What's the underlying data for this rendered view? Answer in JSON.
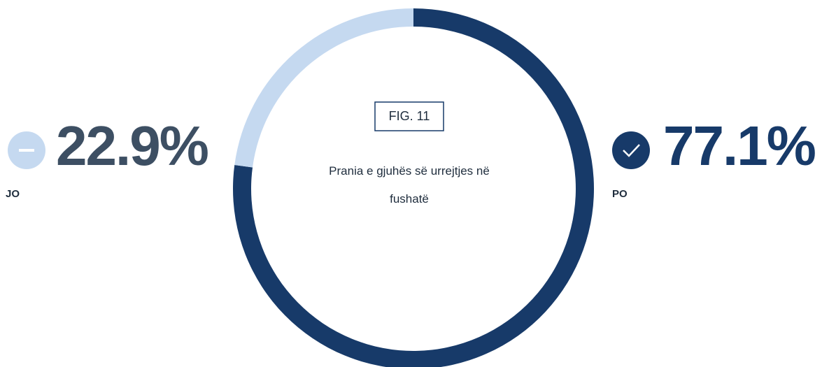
{
  "chart_data": {
    "type": "donut",
    "title": "FIG. 11",
    "subtitle": "Prania e gjuhës së urrejtjes në fushatë",
    "categories": [
      "PO",
      "JO"
    ],
    "values": [
      77.1,
      22.9
    ],
    "value_labels": [
      "77.1%",
      "22.9%"
    ],
    "colors": [
      "#173a69",
      "#c5d9f0"
    ],
    "label_colors": [
      "#173a69",
      "#3d4f63"
    ]
  }
}
